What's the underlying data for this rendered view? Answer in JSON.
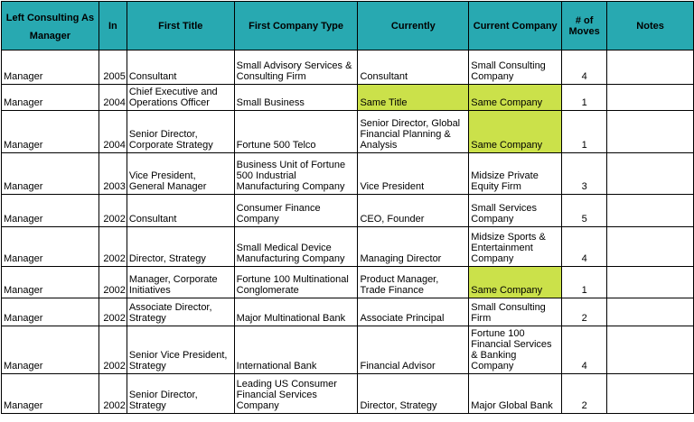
{
  "headers": {
    "left_consulting": [
      "Left Consulting As",
      "Manager"
    ],
    "in": "In",
    "first_title": "First Title",
    "first_company_type": "First Company Type",
    "currently": "Currently",
    "current_company": "Current Company",
    "moves": [
      "# of",
      "Moves"
    ],
    "notes": "Notes"
  },
  "highlight_color": "#cbe14a",
  "header_color": "#28a9b1",
  "rows": [
    {
      "left": "Manager",
      "in": "2005",
      "first_title": "Consultant",
      "first_company_type": "Small Advisory Services & Consulting Firm",
      "currently": "Consultant",
      "current_company": "Small Consulting Company",
      "moves": "4",
      "notes": "",
      "hl_currently": false,
      "hl_company": false
    },
    {
      "left": "Manager",
      "in": "2004",
      "first_title": "Chief Executive and Operations Officer",
      "first_company_type": "Small Business",
      "currently": "Same Title",
      "current_company": "Same Company",
      "moves": "1",
      "notes": "",
      "hl_currently": true,
      "hl_company": true
    },
    {
      "left": "Manager",
      "in": "2004",
      "first_title": "Senior Director, Corporate Strategy",
      "first_company_type": "Fortune 500 Telco",
      "currently": "Senior Director, Global Financial Planning & Analysis",
      "current_company": "Same Company",
      "moves": "1",
      "notes": "",
      "hl_currently": false,
      "hl_company": true
    },
    {
      "left": "Manager",
      "in": "2003",
      "first_title": "Vice President, General Manager",
      "first_company_type": "Business Unit of Fortune 500 Industrial Manufacturing Company",
      "currently": "Vice President",
      "current_company": "Midsize Private Equity Firm",
      "moves": "3",
      "notes": "",
      "hl_currently": false,
      "hl_company": false
    },
    {
      "left": "Manager",
      "in": "2002",
      "first_title": "Consultant",
      "first_company_type": "Consumer Finance Company",
      "currently": "CEO, Founder",
      "current_company": "Small Services Company",
      "moves": "5",
      "notes": "",
      "hl_currently": false,
      "hl_company": false
    },
    {
      "left": "Manager",
      "in": "2002",
      "first_title": "Director, Strategy",
      "first_company_type": "Small Medical Device Manufacturing Company",
      "currently": "Managing Director",
      "current_company": "Midsize Sports & Entertainment Company",
      "moves": "4",
      "notes": "",
      "hl_currently": false,
      "hl_company": false
    },
    {
      "left": "Manager",
      "in": "2002",
      "first_title": "Manager, Corporate Initiatives",
      "first_company_type": "Fortune 100 Multinational Conglomerate",
      "currently": "Product Manager, Trade Finance",
      "current_company": "Same Company",
      "moves": "1",
      "notes": "",
      "hl_currently": false,
      "hl_company": true
    },
    {
      "left": "Manager",
      "in": "2002",
      "first_title": "Associate Director, Strategy",
      "first_company_type": "Major Multinational Bank",
      "currently": "Associate Principal",
      "current_company": "Small Consulting Firm",
      "moves": "2",
      "notes": "",
      "hl_currently": false,
      "hl_company": false
    },
    {
      "left": "Manager",
      "in": "2002",
      "first_title": "Senior Vice President, Strategy",
      "first_company_type": "International Bank",
      "currently": "Financial Advisor",
      "current_company": "Fortune 100 Financial Services & Banking Company",
      "moves": "4",
      "notes": "",
      "hl_currently": false,
      "hl_company": false
    },
    {
      "left": "Manager",
      "in": "2002",
      "first_title": "Senior Director, Strategy",
      "first_company_type": "Leading US Consumer Financial Services Company",
      "currently": "Director, Strategy",
      "current_company": "Major Global Bank",
      "moves": "2",
      "notes": "",
      "hl_currently": false,
      "hl_company": false
    }
  ]
}
